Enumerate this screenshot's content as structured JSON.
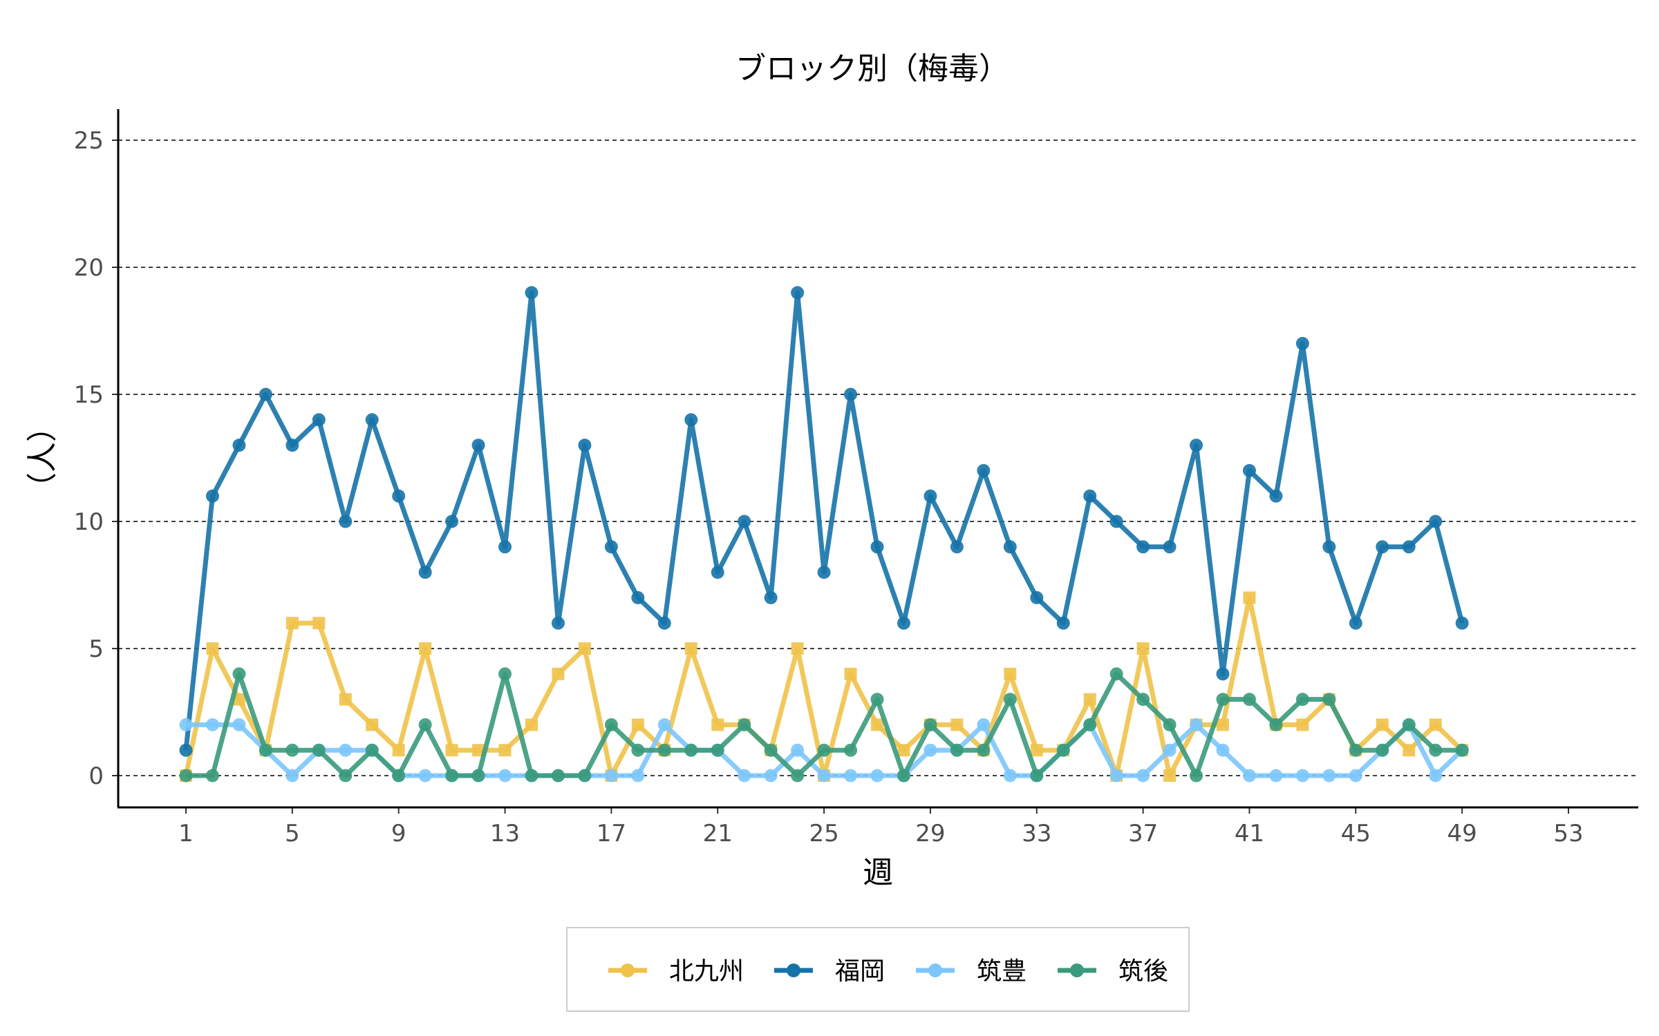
{
  "chart_data": {
    "type": "line",
    "title": "ブロック別（梅毒）",
    "xlabel": "週",
    "ylabel": "（人）",
    "xlim": [
      1,
      53
    ],
    "ylim": [
      0,
      25
    ],
    "xticks": [
      1,
      5,
      9,
      13,
      17,
      21,
      25,
      29,
      33,
      37,
      41,
      45,
      49,
      53
    ],
    "yticks": [
      0,
      5,
      10,
      15,
      20,
      25
    ],
    "grid": "horizontal dashed",
    "legend_position": "bottom",
    "x": [
      1,
      2,
      3,
      4,
      5,
      6,
      7,
      8,
      9,
      10,
      11,
      12,
      13,
      14,
      15,
      16,
      17,
      18,
      19,
      20,
      21,
      22,
      23,
      24,
      25,
      26,
      27,
      28,
      29,
      30,
      31,
      32,
      33,
      34,
      35,
      36,
      37,
      38,
      39,
      40,
      41,
      42,
      43,
      44,
      45,
      46,
      47,
      48,
      49
    ],
    "series": [
      {
        "name": "北九州",
        "color": "#EFC24A",
        "marker": "square",
        "values": [
          0,
          5,
          3,
          1,
          6,
          6,
          3,
          2,
          1,
          5,
          1,
          1,
          1,
          2,
          4,
          5,
          0,
          2,
          1,
          5,
          2,
          2,
          1,
          5,
          0,
          4,
          2,
          1,
          2,
          2,
          1,
          4,
          1,
          1,
          3,
          0,
          5,
          0,
          2,
          2,
          7,
          2,
          2,
          3,
          1,
          2,
          1,
          2,
          1
        ]
      },
      {
        "name": "福岡",
        "color": "#1673A8",
        "marker": "circle",
        "values": [
          1,
          11,
          13,
          15,
          13,
          14,
          10,
          14,
          11,
          8,
          10,
          13,
          9,
          19,
          6,
          13,
          9,
          7,
          6,
          14,
          8,
          10,
          7,
          19,
          8,
          15,
          9,
          6,
          11,
          9,
          12,
          9,
          7,
          6,
          11,
          10,
          9,
          9,
          13,
          4,
          12,
          11,
          17,
          9,
          6,
          9,
          9,
          10,
          6
        ]
      },
      {
        "name": "筑豊",
        "color": "#7CC6FC",
        "marker": "circle",
        "values": [
          2,
          2,
          2,
          1,
          0,
          1,
          1,
          1,
          0,
          0,
          0,
          0,
          0,
          0,
          0,
          0,
          0,
          0,
          2,
          1,
          1,
          0,
          0,
          1,
          0,
          0,
          0,
          0,
          1,
          1,
          2,
          0,
          0,
          1,
          2,
          0,
          0,
          1,
          2,
          1,
          0,
          0,
          0,
          0,
          0,
          1,
          2,
          0,
          1
        ]
      },
      {
        "name": "筑後",
        "color": "#3A9A7C",
        "marker": "circle",
        "values": [
          0,
          0,
          4,
          1,
          1,
          1,
          0,
          1,
          0,
          2,
          0,
          0,
          4,
          0,
          0,
          0,
          2,
          1,
          1,
          1,
          1,
          2,
          1,
          0,
          1,
          1,
          3,
          0,
          2,
          1,
          1,
          3,
          0,
          1,
          2,
          4,
          3,
          2,
          0,
          3,
          3,
          2,
          3,
          3,
          1,
          1,
          2,
          1,
          1
        ]
      }
    ]
  }
}
